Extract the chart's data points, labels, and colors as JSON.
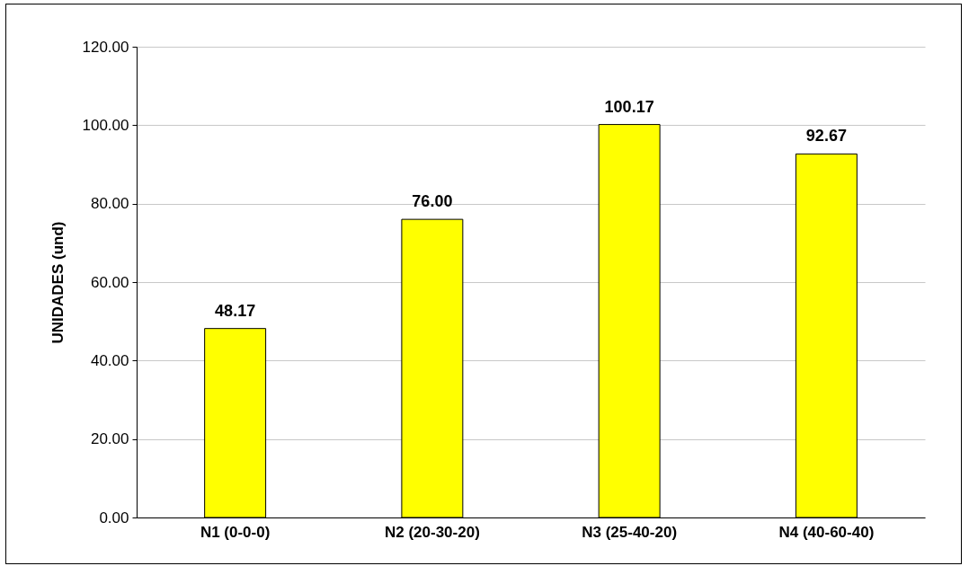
{
  "chart_data": {
    "type": "bar",
    "ylabel": "UNIDADES (und)",
    "categories": [
      "N1 (0-0-0)",
      "N2 (20-30-20)",
      "N3 (25-40-20)",
      "N4 (40-60-40)"
    ],
    "values": [
      48.17,
      76,
      100.17,
      92.67
    ],
    "value_labels": [
      "48.17",
      "76.00",
      "100.17",
      "92.67"
    ],
    "color": "#ffff00",
    "ylim": [
      0,
      120
    ],
    "yticks": [
      {
        "value": 0,
        "label": "0.00"
      },
      {
        "value": 20,
        "label": "20.00"
      },
      {
        "value": 40,
        "label": "40.00"
      },
      {
        "value": 60,
        "label": "60.00"
      },
      {
        "value": 80,
        "label": "80.00"
      },
      {
        "value": 100,
        "label": "100.00"
      },
      {
        "value": 120,
        "label": "120.00"
      }
    ],
    "grid": true
  }
}
